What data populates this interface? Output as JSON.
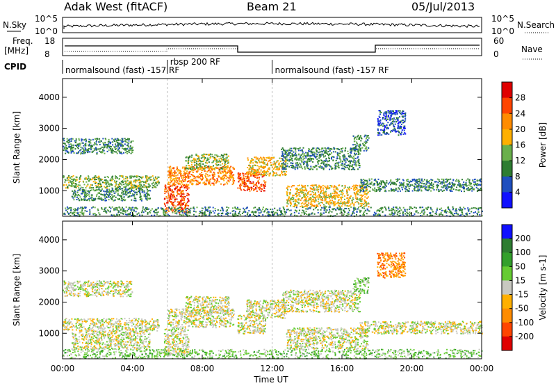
{
  "header": {
    "title": "Adak West (fitACF)",
    "beam": "Beam 21",
    "date": "05/Jul/2013"
  },
  "top_panels": {
    "nsky_label": "N.Sky",
    "nsky_ticks": [
      "10^5",
      "10^0"
    ],
    "nsearch_label": "N.Search",
    "nsearch_ticks": [
      "10^5",
      "10^0"
    ],
    "freq_label_1": "Freq.",
    "freq_label_2": "[MHz]",
    "freq_ticks": [
      "18",
      "8"
    ],
    "nave_label": "Nave",
    "nave_ticks": [
      "60",
      "0"
    ],
    "cpid_label": "CPID",
    "cpid_segments": [
      {
        "label": "normalsound (fast) -157 RF",
        "start_hr": 0,
        "end_hr": 6.0
      },
      {
        "label": "rbsp 200 RF",
        "start_hr": 6.0,
        "end_hr": 12.0
      },
      {
        "label": "normalsound (fast) -157 RF",
        "start_hr": 12.0,
        "end_hr": 24.0
      }
    ]
  },
  "chart_data": [
    {
      "type": "heatmap",
      "name_shown": "Power",
      "xlabel": "Time UT",
      "ylabel": "Slant Range [km]",
      "x_ticks": [
        "00:00",
        "04:00",
        "08:00",
        "12:00",
        "16:00",
        "20:00",
        "00:00"
      ],
      "xlim_hours": [
        0,
        24
      ],
      "ylim_km": [
        180,
        4600
      ],
      "y_ticks": [
        1000,
        2000,
        3000,
        4000
      ],
      "colorbar_label": "Power [dB]",
      "colorbar_ticks": [
        "28",
        "24",
        "20",
        "16",
        "12",
        "8",
        "4"
      ],
      "colorbar_colors": [
        "#e00000",
        "#ff4500",
        "#ff8c00",
        "#ffb000",
        "#6ab04c",
        "#2e7d32",
        "#1f4fbf",
        "#1010ff"
      ],
      "scatter_regions": [
        {
          "t0": 0.0,
          "t1": 4.0,
          "r0": 2200,
          "r1": 2700,
          "level": 2
        },
        {
          "t0": 0.0,
          "t1": 5.5,
          "r0": 1100,
          "r1": 1500,
          "level": 3
        },
        {
          "t0": 0.5,
          "t1": 5.0,
          "r0": 700,
          "r1": 1100,
          "level": 2
        },
        {
          "t0": 5.8,
          "t1": 7.2,
          "r0": 300,
          "r1": 1200,
          "level": 6
        },
        {
          "t0": 6.0,
          "t1": 9.8,
          "r0": 1200,
          "r1": 1800,
          "level": 5
        },
        {
          "t0": 7.0,
          "t1": 9.5,
          "r0": 1700,
          "r1": 2200,
          "level": 3
        },
        {
          "t0": 10.0,
          "t1": 11.6,
          "r0": 1000,
          "r1": 1600,
          "level": 6
        },
        {
          "t0": 10.5,
          "t1": 12.8,
          "r0": 1500,
          "r1": 2100,
          "level": 4
        },
        {
          "t0": 12.5,
          "t1": 17.0,
          "r0": 1700,
          "r1": 2400,
          "level": 2
        },
        {
          "t0": 12.8,
          "t1": 17.5,
          "r0": 500,
          "r1": 1200,
          "level": 4
        },
        {
          "t0": 17.0,
          "t1": 24.0,
          "r0": 1000,
          "r1": 1400,
          "level": 2
        },
        {
          "t0": 16.6,
          "t1": 17.5,
          "r0": 2300,
          "r1": 2800,
          "level": 2
        },
        {
          "t0": 18.0,
          "t1": 19.6,
          "r0": 2800,
          "r1": 3600,
          "level": 1
        },
        {
          "t0": 0.0,
          "t1": 24.0,
          "r0": 200,
          "r1": 500,
          "level": 2
        }
      ]
    },
    {
      "type": "heatmap",
      "name_shown": "Velocity",
      "xlabel": "Time UT",
      "ylabel": "Slant Range [km]",
      "x_ticks": [
        "00:00",
        "04:00",
        "08:00",
        "12:00",
        "16:00",
        "20:00",
        "00:00"
      ],
      "xlim_hours": [
        0,
        24
      ],
      "ylim_km": [
        180,
        4600
      ],
      "y_ticks": [
        1000,
        2000,
        3000,
        4000
      ],
      "colorbar_label": "Velocity [m s-1]",
      "colorbar_ticks": [
        "200",
        "100",
        "50",
        "15",
        "-15",
        "-50",
        "-100",
        "-200"
      ],
      "colorbar_colors": [
        "#1010ff",
        "#2e7d32",
        "#33a02c",
        "#66cc33",
        "#c8c8c0",
        "#ffb000",
        "#ff8c00",
        "#ff4500",
        "#e00000"
      ],
      "scatter_regions": [
        {
          "t0": 0.0,
          "t1": 4.0,
          "r0": 2200,
          "r1": 2700,
          "level": 4
        },
        {
          "t0": 0.0,
          "t1": 5.5,
          "r0": 1100,
          "r1": 1500,
          "level": 4
        },
        {
          "t0": 0.5,
          "t1": 5.0,
          "r0": 500,
          "r1": 1100,
          "level": 4
        },
        {
          "t0": 5.8,
          "t1": 7.2,
          "r0": 300,
          "r1": 1200,
          "level": 4
        },
        {
          "t0": 6.0,
          "t1": 9.8,
          "r0": 1200,
          "r1": 1800,
          "level": 4
        },
        {
          "t0": 7.0,
          "t1": 9.5,
          "r0": 1700,
          "r1": 2200,
          "level": 4
        },
        {
          "t0": 10.0,
          "t1": 11.6,
          "r0": 1000,
          "r1": 1600,
          "level": 4
        },
        {
          "t0": 10.5,
          "t1": 12.8,
          "r0": 1500,
          "r1": 2100,
          "level": 4
        },
        {
          "t0": 12.5,
          "t1": 17.0,
          "r0": 1700,
          "r1": 2400,
          "level": 4
        },
        {
          "t0": 12.8,
          "t1": 17.5,
          "r0": 500,
          "r1": 1200,
          "level": 4
        },
        {
          "t0": 17.0,
          "t1": 24.0,
          "r0": 1000,
          "r1": 1400,
          "level": 4
        },
        {
          "t0": 16.6,
          "t1": 17.5,
          "r0": 2300,
          "r1": 2800,
          "level": 3
        },
        {
          "t0": 18.0,
          "t1": 19.6,
          "r0": 2800,
          "r1": 3600,
          "level": 6
        },
        {
          "t0": 0.0,
          "t1": 24.0,
          "r0": 200,
          "r1": 500,
          "level": 3
        }
      ]
    }
  ]
}
